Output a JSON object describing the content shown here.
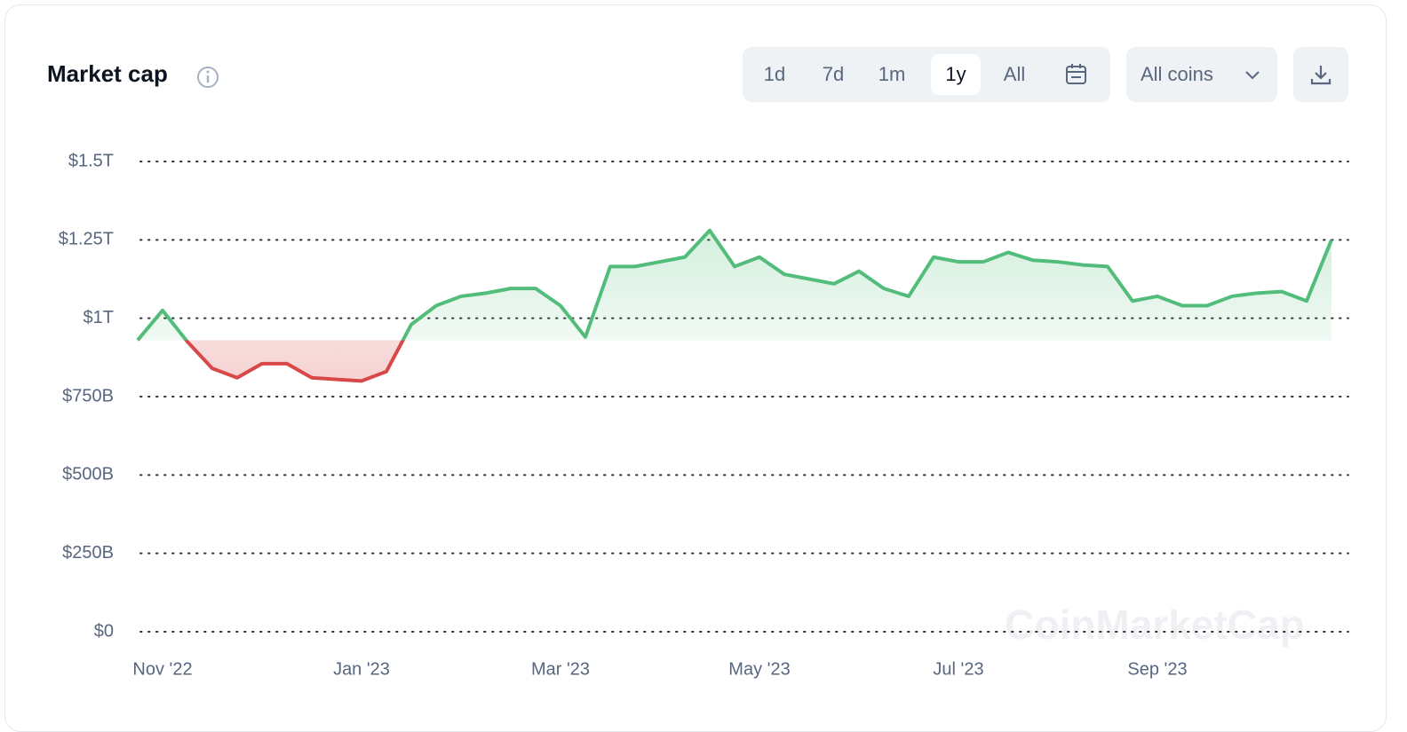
{
  "header": {
    "title": "Market cap",
    "ranges": [
      "1d",
      "7d",
      "1m",
      "1y",
      "All"
    ],
    "selected_range": "1y",
    "coin_filter": "All coins"
  },
  "chart_data": {
    "type": "line",
    "categories": [
      null,
      "Nov '22",
      null,
      null,
      null,
      null,
      null,
      null,
      null,
      "Jan '23",
      null,
      null,
      null,
      null,
      null,
      null,
      null,
      "Mar '23",
      null,
      null,
      null,
      null,
      null,
      null,
      null,
      "May '23",
      null,
      null,
      null,
      null,
      null,
      null,
      null,
      "Jul '23",
      null,
      null,
      null,
      null,
      null,
      null,
      null,
      "Sep '23",
      null,
      null,
      null,
      null,
      null,
      null,
      null
    ],
    "series": [
      {
        "name": "Market cap",
        "values": [
          0.93,
          1.025,
          0.925,
          0.84,
          0.81,
          0.855,
          0.855,
          0.81,
          0.805,
          0.8,
          0.83,
          0.98,
          1.04,
          1.07,
          1.08,
          1.095,
          1.095,
          1.04,
          0.94,
          1.165,
          1.165,
          1.18,
          1.195,
          1.28,
          1.165,
          1.195,
          1.14,
          1.125,
          1.11,
          1.15,
          1.095,
          1.07,
          1.195,
          1.18,
          1.18,
          1.21,
          1.185,
          1.18,
          1.17,
          1.165,
          1.055,
          1.07,
          1.04,
          1.04,
          1.07,
          1.08,
          1.085,
          1.055,
          1.25
        ]
      }
    ],
    "up_color": "#52bd7a",
    "down_color": "#d94848",
    "ylim": [
      0,
      1.5
    ],
    "yticks": [
      {
        "value": 0,
        "label": "$0"
      },
      {
        "value": 0.25,
        "label": "$250B"
      },
      {
        "value": 0.5,
        "label": "$500B"
      },
      {
        "value": 0.75,
        "label": "$750B"
      },
      {
        "value": 1,
        "label": "$1T"
      },
      {
        "value": 1.25,
        "label": "$1.25T"
      },
      {
        "value": 1.5,
        "label": "$1.5T"
      }
    ],
    "grid": true,
    "watermark": "CoinMarketCap"
  }
}
